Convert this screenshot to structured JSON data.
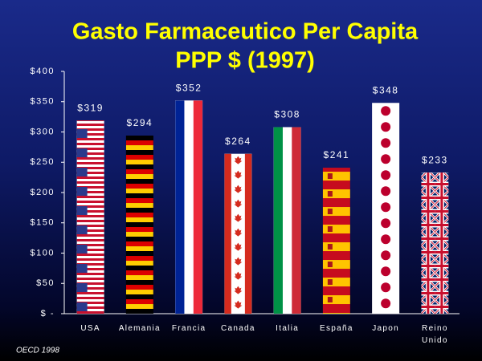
{
  "chart_data": {
    "type": "bar",
    "title": "Gasto Farmaceutico Per Capita",
    "subtitle": "PPP $ (1997)",
    "categories": [
      "USA",
      "Alemania",
      "Francia",
      "Canada",
      "Italia",
      "España",
      "Japon",
      "Reino Unido"
    ],
    "values": [
      319,
      294,
      352,
      264,
      308,
      241,
      348,
      233
    ],
    "value_labels": [
      "$319",
      "$294",
      "$352",
      "$264",
      "$308",
      "$241",
      "$348",
      "$233"
    ],
    "ylim": [
      0,
      400
    ],
    "yticks": [
      {
        "value": 0,
        "label": "$ -"
      },
      {
        "value": 50,
        "label": "$50"
      },
      {
        "value": 100,
        "label": "$100"
      },
      {
        "value": 150,
        "label": "$150"
      },
      {
        "value": 200,
        "label": "$200"
      },
      {
        "value": 250,
        "label": "$250"
      },
      {
        "value": 300,
        "label": "$300"
      },
      {
        "value": 350,
        "label": "$350"
      },
      {
        "value": 400,
        "label": "$400"
      }
    ],
    "grid": false,
    "source": "OECD 1998"
  }
}
